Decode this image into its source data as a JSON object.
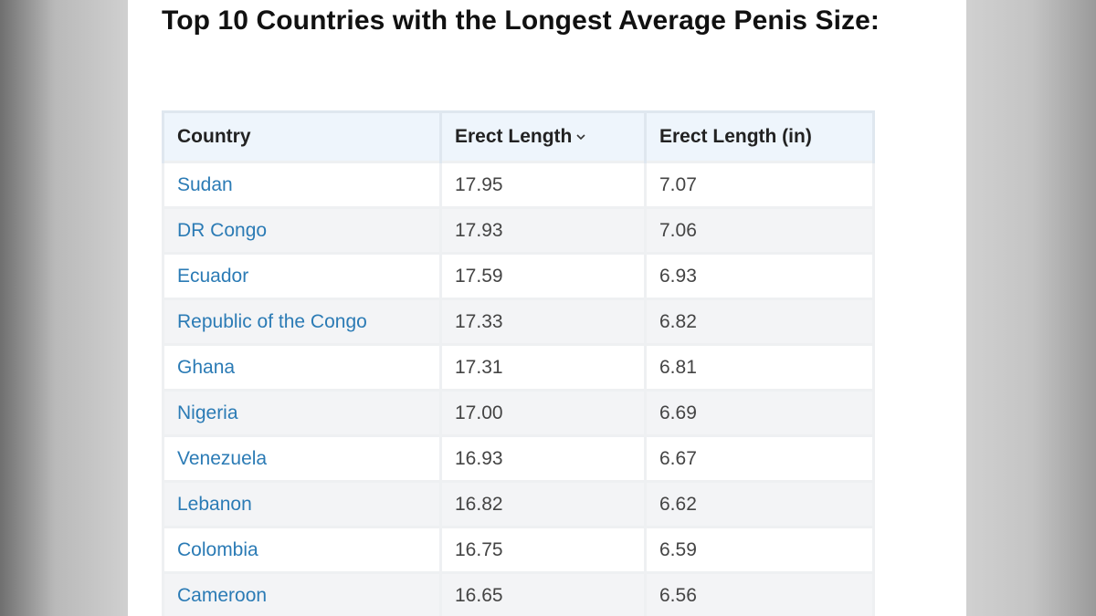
{
  "header": {
    "title": "Top 10 Countries with the Longest Average Penis Size:"
  },
  "table": {
    "columns": [
      "Country",
      "Erect Length",
      "Erect Length (in)"
    ],
    "rows": [
      [
        "Sudan",
        "17.95",
        "7.07"
      ],
      [
        "DR Congo",
        "17.93",
        "7.06"
      ],
      [
        "Ecuador",
        "17.59",
        "6.93"
      ],
      [
        "Republic of the Congo",
        "17.33",
        "6.82"
      ],
      [
        "Ghana",
        "17.31",
        "6.81"
      ],
      [
        "Nigeria",
        "17.00",
        "6.69"
      ],
      [
        "Venezuela",
        "16.93",
        "6.67"
      ],
      [
        "Lebanon",
        "16.82",
        "6.62"
      ],
      [
        "Colombia",
        "16.75",
        "6.59"
      ],
      [
        "Cameroon",
        "16.65",
        "6.56"
      ]
    ]
  }
}
